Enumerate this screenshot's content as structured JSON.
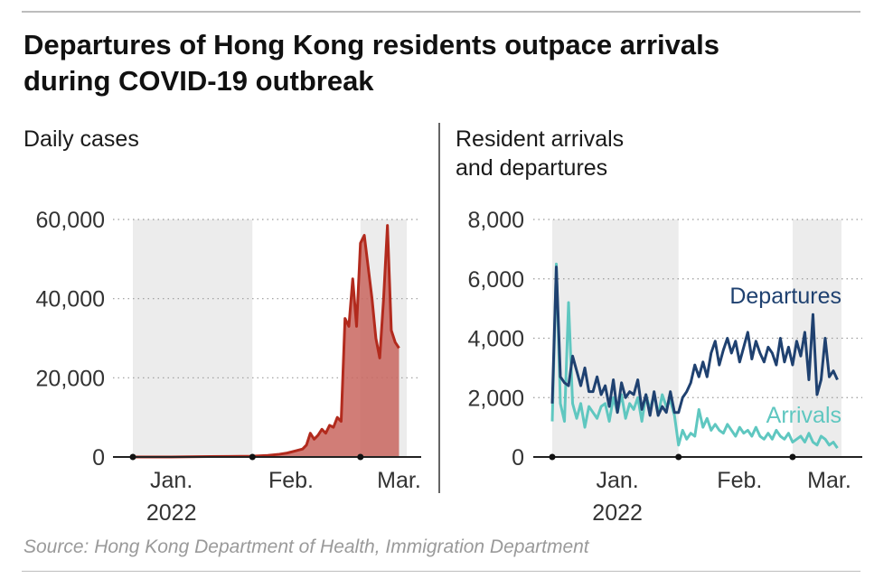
{
  "header": {
    "title_line1": "Departures of Hong Kong residents outpace arrivals",
    "title_line2": "during COVID-19 outbreak"
  },
  "source": "Source: Hong Kong Department of Health, Immigration Department",
  "colors": {
    "cases_line": "#b22a1d",
    "cases_fill": "#c9665f",
    "departures": "#1f4170",
    "arrivals": "#5fc7c0",
    "shade": "#ececec",
    "grid": "#9a9a9a",
    "axis": "#222222"
  },
  "chart_data": [
    {
      "type": "area",
      "title": "Daily cases",
      "ylim": [
        0,
        60000
      ],
      "yticks": [
        0,
        20000,
        40000,
        60000
      ],
      "ytick_labels": [
        "0",
        "20,000",
        "40,000",
        "60,000"
      ],
      "xlim": [
        0,
        71
      ],
      "x_unit": "day index (0 = Dec. 22, 2021)",
      "xtick_labels": [
        {
          "x": 10,
          "label": "Jan."
        },
        {
          "x": 41,
          "label": "Feb."
        },
        {
          "x": 69,
          "label": "Mar."
        }
      ],
      "year_label": {
        "x": 10,
        "label": "2022"
      },
      "xtick_dots": [
        0,
        31,
        59
      ],
      "shaded_ranges": [
        [
          0,
          31
        ],
        [
          59,
          71
        ]
      ],
      "series": [
        {
          "name": "Daily cases",
          "x": [
            0,
            10,
            20,
            31,
            35,
            38,
            40,
            42,
            44,
            45,
            46,
            47,
            48,
            49,
            50,
            51,
            52,
            53,
            54,
            55,
            56,
            57,
            58,
            59,
            60,
            61,
            62,
            63,
            64,
            65,
            66,
            67,
            68,
            69
          ],
          "values": [
            0,
            0,
            100,
            200,
            400,
            700,
            1000,
            1500,
            2000,
            3000,
            6000,
            4500,
            5500,
            7000,
            6000,
            8000,
            7500,
            10000,
            9000,
            35000,
            33000,
            45000,
            33000,
            54000,
            56000,
            48000,
            40000,
            30000,
            25000,
            40000,
            58500,
            32000,
            29000,
            27500
          ]
        }
      ]
    },
    {
      "type": "line",
      "title_line1": "Resident arrivals",
      "title_line2": "and departures",
      "ylim": [
        0,
        8000
      ],
      "yticks": [
        0,
        2000,
        4000,
        6000,
        8000
      ],
      "ytick_labels": [
        "0",
        "2,000",
        "4,000",
        "6,000",
        "8,000"
      ],
      "xlim": [
        0,
        71
      ],
      "xtick_labels": [
        {
          "x": 16,
          "label": "Jan."
        },
        {
          "x": 46,
          "label": "Feb."
        },
        {
          "x": 68,
          "label": "Mar."
        }
      ],
      "year_label": {
        "x": 16,
        "label": "2022"
      },
      "xtick_dots": [
        0,
        31,
        59
      ],
      "shaded_ranges": [
        [
          0,
          31
        ],
        [
          59,
          71
        ]
      ],
      "series": [
        {
          "name": "Departures",
          "x": [
            0,
            1,
            2,
            3,
            4,
            5,
            6,
            7,
            8,
            9,
            10,
            11,
            12,
            13,
            14,
            15,
            16,
            17,
            18,
            19,
            20,
            21,
            22,
            23,
            24,
            25,
            26,
            27,
            28,
            29,
            30,
            31,
            32,
            33,
            34,
            35,
            36,
            37,
            38,
            39,
            40,
            41,
            42,
            43,
            44,
            45,
            46,
            47,
            48,
            49,
            50,
            51,
            52,
            53,
            54,
            55,
            56,
            57,
            58,
            59,
            60,
            61,
            62,
            63,
            64,
            65,
            66,
            67,
            68,
            69,
            70
          ],
          "values": [
            1800,
            6400,
            2700,
            2500,
            2400,
            3400,
            2900,
            2400,
            3000,
            2200,
            2200,
            2700,
            2100,
            2400,
            1700,
            2600,
            1500,
            2500,
            2000,
            2200,
            2100,
            2600,
            1600,
            2100,
            1400,
            2200,
            1400,
            1700,
            1500,
            2200,
            1500,
            1500,
            2000,
            2200,
            2500,
            3100,
            2700,
            3200,
            2700,
            3500,
            3900,
            3100,
            3600,
            4000,
            3500,
            3900,
            3200,
            3700,
            4200,
            3300,
            3900,
            3500,
            3200,
            3700,
            3500,
            3100,
            4000,
            3200,
            3700,
            3100,
            3900,
            3400,
            4200,
            2600,
            4800,
            2100,
            2600,
            4000,
            2700,
            2900,
            2600
          ]
        },
        {
          "name": "Arrivals",
          "x": [
            0,
            1,
            2,
            3,
            4,
            5,
            6,
            7,
            8,
            9,
            10,
            11,
            12,
            13,
            14,
            15,
            16,
            17,
            18,
            19,
            20,
            21,
            22,
            23,
            24,
            25,
            26,
            27,
            28,
            29,
            30,
            31,
            32,
            33,
            34,
            35,
            36,
            37,
            38,
            39,
            40,
            41,
            42,
            43,
            44,
            45,
            46,
            47,
            48,
            49,
            50,
            51,
            52,
            53,
            54,
            55,
            56,
            57,
            58,
            59,
            60,
            61,
            62,
            63,
            64,
            65,
            66,
            67,
            68,
            69,
            70
          ],
          "values": [
            1200,
            6500,
            1800,
            1200,
            5200,
            1800,
            1300,
            1800,
            1000,
            1700,
            1500,
            1300,
            1700,
            1800,
            1200,
            2000,
            1500,
            2100,
            1300,
            1800,
            1600,
            2000,
            1200,
            2100,
            1600,
            2100,
            1400,
            2100,
            1700,
            1900,
            1400,
            400,
            900,
            600,
            800,
            700,
            1600,
            1000,
            1300,
            900,
            1100,
            900,
            800,
            1100,
            900,
            700,
            1000,
            800,
            900,
            700,
            1000,
            700,
            600,
            800,
            600,
            900,
            700,
            600,
            800,
            500,
            600,
            700,
            500,
            800,
            500,
            400,
            700,
            600,
            400,
            500,
            300
          ]
        }
      ],
      "series_labels": [
        {
          "series": "Departures",
          "text": "Departures"
        },
        {
          "series": "Arrivals",
          "text": "Arrivals"
        }
      ]
    }
  ]
}
